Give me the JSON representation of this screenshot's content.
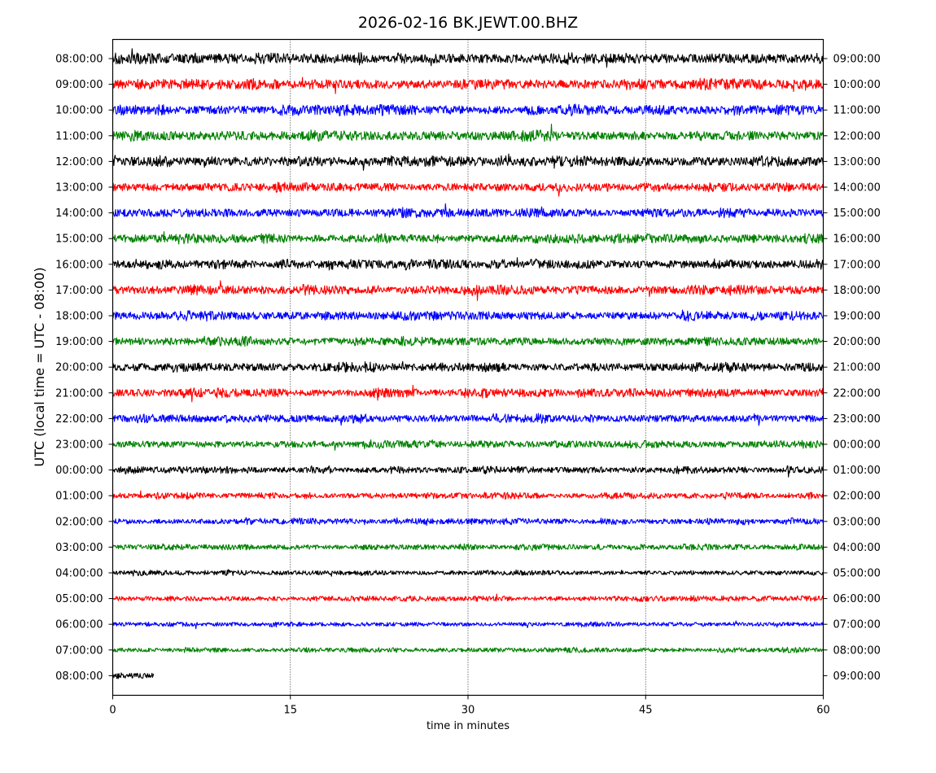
{
  "chart_data": {
    "type": "line",
    "title": "2026-02-16 BK.JEWT.00.BHZ",
    "xlabel": "time in minutes",
    "ylabel": "UTC (local time = UTC - 08:00)",
    "xlim": [
      0,
      60
    ],
    "x_ticks": [
      0,
      15,
      30,
      45,
      60
    ],
    "x_tick_labels": [
      "0",
      "15",
      "30",
      "45",
      "60"
    ],
    "grid": "vertical dotted lines at 15, 30, 45",
    "colors": [
      "#000000",
      "#ff0000",
      "#0000ff",
      "#008000"
    ],
    "left_tick_labels": [
      "08:00:00",
      "09:00:00",
      "10:00:00",
      "11:00:00",
      "12:00:00",
      "13:00:00",
      "14:00:00",
      "15:00:00",
      "16:00:00",
      "17:00:00",
      "18:00:00",
      "19:00:00",
      "20:00:00",
      "21:00:00",
      "22:00:00",
      "23:00:00",
      "00:00:00",
      "01:00:00",
      "02:00:00",
      "03:00:00",
      "04:00:00",
      "05:00:00",
      "06:00:00",
      "07:00:00",
      "08:00:00"
    ],
    "right_tick_labels": [
      "09:00:00",
      "10:00:00",
      "11:00:00",
      "12:00:00",
      "13:00:00",
      "14:00:00",
      "15:00:00",
      "16:00:00",
      "17:00:00",
      "18:00:00",
      "19:00:00",
      "20:00:00",
      "21:00:00",
      "22:00:00",
      "23:00:00",
      "00:00:00",
      "01:00:00",
      "02:00:00",
      "03:00:00",
      "04:00:00",
      "05:00:00",
      "06:00:00",
      "07:00:00",
      "08:00:00",
      "09:00:00"
    ],
    "traces": [
      {
        "color": "#000000",
        "end_minute": 60,
        "amplitude": 1.0
      },
      {
        "color": "#ff0000",
        "end_minute": 60,
        "amplitude": 1.0
      },
      {
        "color": "#0000ff",
        "end_minute": 60,
        "amplitude": 1.0
      },
      {
        "color": "#008000",
        "end_minute": 60,
        "amplitude": 1.0
      },
      {
        "color": "#000000",
        "end_minute": 60,
        "amplitude": 1.0
      },
      {
        "color": "#ff0000",
        "end_minute": 60,
        "amplitude": 0.9
      },
      {
        "color": "#0000ff",
        "end_minute": 60,
        "amplitude": 0.9
      },
      {
        "color": "#008000",
        "end_minute": 60,
        "amplitude": 0.9
      },
      {
        "color": "#000000",
        "end_minute": 60,
        "amplitude": 0.9
      },
      {
        "color": "#ff0000",
        "end_minute": 60,
        "amplitude": 0.9
      },
      {
        "color": "#0000ff",
        "end_minute": 60,
        "amplitude": 0.9
      },
      {
        "color": "#008000",
        "end_minute": 60,
        "amplitude": 0.85
      },
      {
        "color": "#000000",
        "end_minute": 60,
        "amplitude": 0.85
      },
      {
        "color": "#ff0000",
        "end_minute": 60,
        "amplitude": 0.85
      },
      {
        "color": "#0000ff",
        "end_minute": 60,
        "amplitude": 0.8
      },
      {
        "color": "#008000",
        "end_minute": 60,
        "amplitude": 0.75
      },
      {
        "color": "#000000",
        "end_minute": 60,
        "amplitude": 0.65
      },
      {
        "color": "#ff0000",
        "end_minute": 60,
        "amplitude": 0.6
      },
      {
        "color": "#0000ff",
        "end_minute": 60,
        "amplitude": 0.6
      },
      {
        "color": "#008000",
        "end_minute": 60,
        "amplitude": 0.55
      },
      {
        "color": "#000000",
        "end_minute": 60,
        "amplitude": 0.5
      },
      {
        "color": "#ff0000",
        "end_minute": 60,
        "amplitude": 0.5
      },
      {
        "color": "#0000ff",
        "end_minute": 60,
        "amplitude": 0.45
      },
      {
        "color": "#008000",
        "end_minute": 60,
        "amplitude": 0.45
      },
      {
        "color": "#000000",
        "end_minute": 3.5,
        "amplitude": 0.55
      }
    ]
  }
}
